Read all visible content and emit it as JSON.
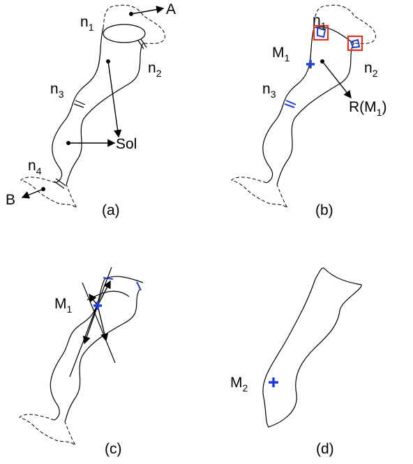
{
  "panels": [
    {
      "caption": "(a)",
      "labels": [
        {
          "text": "n",
          "sub": "1"
        },
        {
          "text": "A"
        },
        {
          "text": "n",
          "sub": "2"
        },
        {
          "text": "n",
          "sub": "3"
        },
        {
          "text": "Sol"
        },
        {
          "text": "n",
          "sub": "4"
        },
        {
          "text": "B"
        }
      ]
    },
    {
      "caption": "(b)",
      "labels": [
        {
          "text": "n",
          "sub": "1"
        },
        {
          "text": "M",
          "sub": "1"
        },
        {
          "text": "n",
          "sub": "2"
        },
        {
          "text": "n",
          "sub": "3"
        },
        {
          "text": "R(M",
          "sub": "1",
          "after": ")"
        }
      ]
    },
    {
      "caption": "(c)",
      "labels": [
        {
          "text": "M",
          "sub": "1"
        }
      ]
    },
    {
      "caption": "(d)",
      "labels": [
        {
          "text": "M",
          "sub": "2"
        }
      ]
    }
  ]
}
